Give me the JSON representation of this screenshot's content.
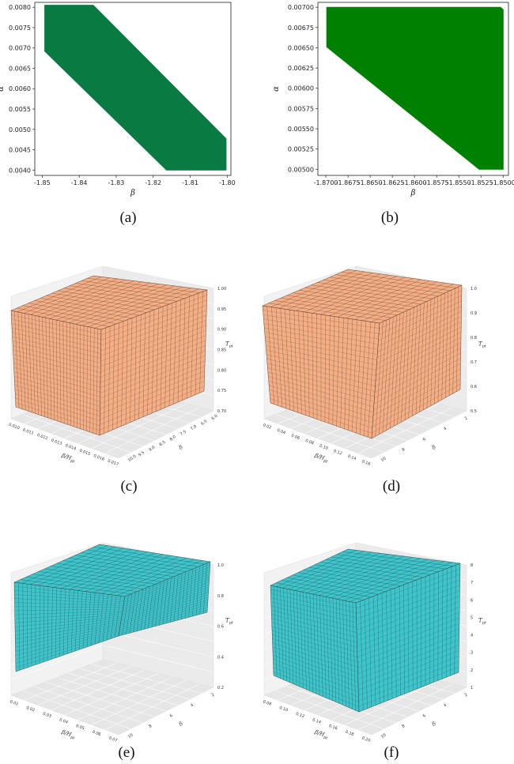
{
  "captions": [
    "(a)",
    "(b)",
    "(c)",
    "(d)",
    "(e)",
    "(f)"
  ],
  "chart_data": [
    {
      "type": "area",
      "panel": "(a)",
      "region_polygon": {
        "x": [
          -1.8493,
          -1.8493,
          -1.8362,
          -1.8003,
          -1.8003,
          -1.8164,
          -1.8493
        ],
        "y": [
          0.00805,
          0.00805,
          0.00805,
          0.00477,
          0.004,
          0.004,
          0.00692
        ]
      },
      "fill_color": "#0a7a43",
      "xlabel": "β",
      "ylabel": "α",
      "xlim": [
        -1.852,
        -1.799
      ],
      "ylim": [
        0.00387,
        0.00812
      ],
      "xticks": [
        "-1.85",
        "-1.84",
        "-1.83",
        "-1.82",
        "-1.81",
        "-1.80"
      ],
      "xtick_values": [
        -1.85,
        -1.84,
        -1.83,
        -1.82,
        -1.81,
        -1.8
      ],
      "yticks": [
        "0.0040",
        "0.0045",
        "0.0050",
        "0.0055",
        "0.0060",
        "0.0065",
        "0.0070",
        "0.0075",
        "0.0080"
      ],
      "ytick_values": [
        0.004,
        0.0045,
        0.005,
        0.0055,
        0.006,
        0.0065,
        0.007,
        0.0075,
        0.008
      ],
      "grid": false
    },
    {
      "type": "area",
      "panel": "(b)",
      "region_polygon": {
        "x": [
          -1.8699,
          -1.8699,
          -1.8503,
          -1.85,
          -1.85,
          -1.8527,
          -1.8699
        ],
        "y": [
          0.007,
          0.007,
          0.007,
          0.00697,
          0.005,
          0.005,
          0.00651
        ]
      },
      "fill_color": "#008000",
      "xlabel": "β",
      "ylabel": "α",
      "xlim": [
        -1.8709,
        -1.8494
      ],
      "ylim": [
        0.004925,
        0.00706
      ],
      "xticks": [
        "-1.8700",
        "-1.8675",
        "-1.8650",
        "-1.8625",
        "-1.8600",
        "-1.8575",
        "-1.8550",
        "-1.8525",
        "-1.8500"
      ],
      "xtick_values": [
        -1.87,
        -1.8675,
        -1.865,
        -1.8625,
        -1.86,
        -1.8575,
        -1.855,
        -1.8525,
        -1.85
      ],
      "yticks": [
        "0.00500",
        "0.00525",
        "0.00550",
        "0.00575",
        "0.00600",
        "0.00625",
        "0.00650",
        "0.00675",
        "0.00700"
      ],
      "ytick_values": [
        0.005,
        0.00525,
        0.0055,
        0.00575,
        0.006,
        0.00625,
        0.0065,
        0.00675,
        0.007
      ],
      "grid": false
    },
    {
      "type": "voxel3d",
      "panel": "(c)",
      "color": "#f5ad84",
      "xlabel": "β/H_{pt}",
      "ylabel": "δ",
      "zlabel": "T_{pt}",
      "xticks": [
        "0.010",
        "0.011",
        "0.012",
        "0.013",
        "0.014",
        "0.015",
        "0.016",
        "0.017"
      ],
      "yticks": [
        "6.0",
        "6.5",
        "7.0",
        "7.5",
        "8.0",
        "8.5",
        "9.0",
        "9.5",
        "10.0"
      ],
      "zticks": [
        "0.70",
        "0.75",
        "0.80",
        "0.85",
        "0.90",
        "0.95",
        "1.00"
      ],
      "grid": true
    },
    {
      "type": "voxel3d",
      "panel": "(d)",
      "color": "#f5ad84",
      "xlabel": "β/H_{pt}",
      "ylabel": "δ",
      "zlabel": "T_{pt}",
      "xticks": [
        "0.02",
        "0.04",
        "0.06",
        "0.08",
        "0.10",
        "0.12",
        "0.14",
        "0.16"
      ],
      "yticks": [
        "2",
        "4",
        "6",
        "8",
        "10"
      ],
      "zticks": [
        "0.5",
        "0.6",
        "0.7",
        "0.8",
        "0.9",
        "1.0"
      ],
      "grid": true
    },
    {
      "type": "voxel3d",
      "panel": "(e)",
      "color": "#3ec5cc",
      "xlabel": "β/H_{pt}",
      "ylabel": "δ",
      "zlabel": "T_{pt}",
      "xticks": [
        "0.01",
        "0.02",
        "0.03",
        "0.04",
        "0.05",
        "0.06",
        "0.07"
      ],
      "yticks": [
        "2",
        "4",
        "6",
        "8",
        "10"
      ],
      "zticks": [
        "0.2",
        "0.4",
        "0.6",
        "0.8",
        "1.0"
      ],
      "grid": true
    },
    {
      "type": "voxel3d",
      "panel": "(f)",
      "color": "#3ec5cc",
      "xlabel": "β/H_{pt}",
      "ylabel": "δ",
      "zlabel": "T_{pt}",
      "xticks": [
        "0.08",
        "0.10",
        "0.12",
        "0.14",
        "0.16",
        "0.18",
        "0.20"
      ],
      "yticks": [
        "2",
        "4",
        "6",
        "8",
        "10"
      ],
      "zticks": [
        "1",
        "2",
        "3",
        "4",
        "5",
        "6",
        "7",
        "8"
      ],
      "grid": true
    }
  ]
}
